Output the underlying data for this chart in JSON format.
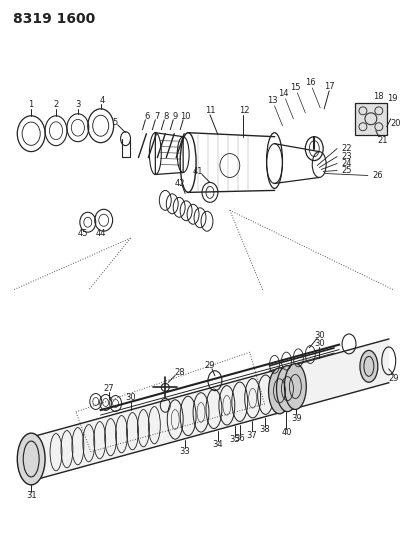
{
  "title": "8319 1600",
  "bg_color": "#ffffff",
  "fg_color": "#222222",
  "title_fontsize": 10,
  "title_fontweight": "bold"
}
